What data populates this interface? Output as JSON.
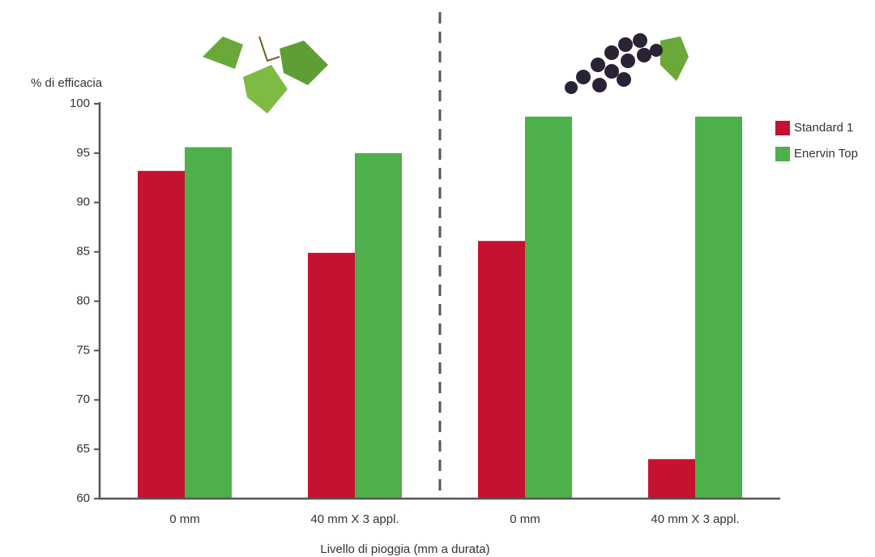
{
  "chart_data": {
    "type": "bar",
    "y_label": "% di efficacia",
    "x_label": "Livello di pioggia (mm a durata)",
    "categories": [
      "0 mm",
      "40 mm X 3 appl.",
      "0 mm",
      "40 mm X 3 appl."
    ],
    "series": [
      {
        "name": "Standard 1",
        "color": "#c41230",
        "values": [
          93.2,
          84.9,
          86.1,
          64
        ]
      },
      {
        "name": "Enervin Top",
        "color": "#4db04a",
        "values": [
          95.6,
          95,
          98.7,
          98.7
        ]
      }
    ],
    "ylim": [
      60,
      100
    ],
    "yticks": [
      60,
      65,
      70,
      75,
      80,
      85,
      90,
      95,
      100
    ],
    "legend": "right"
  }
}
